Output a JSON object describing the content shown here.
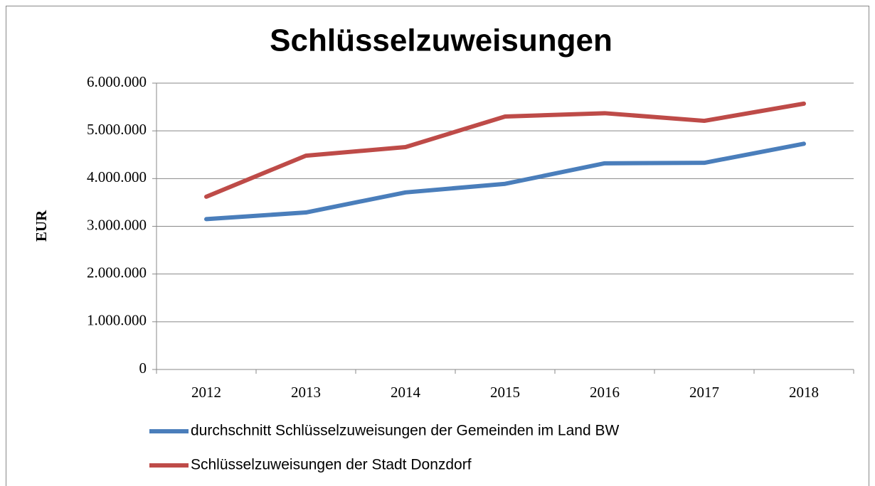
{
  "chart_data": {
    "type": "line",
    "title": "Schlüsselzuweisungen",
    "y_label": "EUR",
    "categories": [
      "2012",
      "2013",
      "2014",
      "2015",
      "2016",
      "2017",
      "2018"
    ],
    "series": [
      {
        "name": "durchschnitt Schlüsselzuweisungen der Gemeinden im Land BW",
        "color": "#4a7ebb",
        "values": [
          3150000,
          3290000,
          3710000,
          3890000,
          4320000,
          4330000,
          4730000
        ]
      },
      {
        "name": "Schlüsselzuweisungen der Stadt Donzdorf",
        "color": "#be4b48",
        "values": [
          3620000,
          4480000,
          4660000,
          5300000,
          5370000,
          5210000,
          5570000
        ]
      }
    ],
    "ylim": [
      0,
      6000000
    ],
    "yticks": [
      0,
      {
        "value": 1000000,
        "label": "1.000.000"
      },
      {
        "value": 2000000,
        "label": "2.000.000"
      },
      {
        "value": 3000000,
        "label": "3.000.000"
      },
      {
        "value": 4000000,
        "label": "4.000.000"
      },
      {
        "value": 5000000,
        "label": "5.000.000"
      },
      {
        "value": 6000000,
        "label": "6.000.000"
      }
    ],
    "grid": true,
    "legend": "bottom"
  }
}
